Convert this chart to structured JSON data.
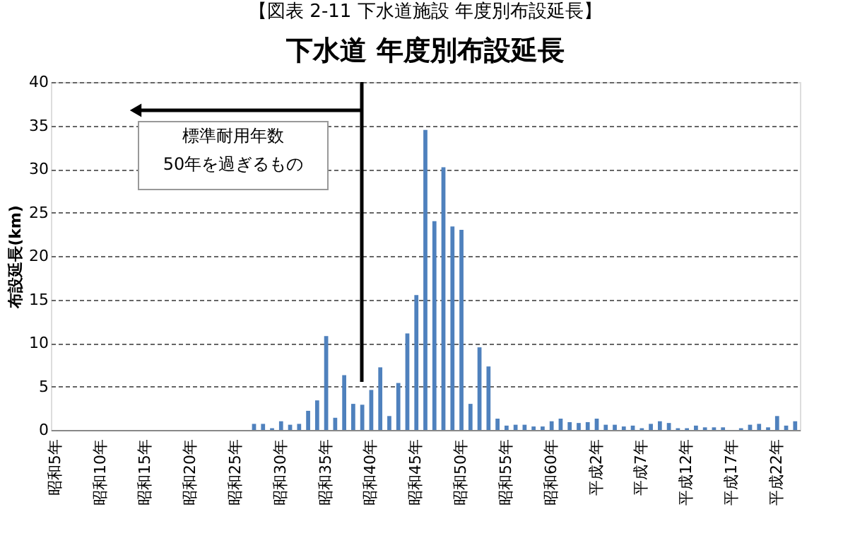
{
  "chart_data": {
    "type": "bar",
    "title": "【図表 2-11 下水道施設 年度別布設延長】",
    "subtitle": "下水道 年度別布設延長",
    "ylabel": "布設延長(km)",
    "categories": [
      "昭和5年",
      null,
      null,
      null,
      null,
      "昭和10年",
      null,
      null,
      null,
      null,
      "昭和15年",
      null,
      null,
      null,
      null,
      "昭和20年",
      null,
      null,
      null,
      null,
      "昭和25年",
      null,
      null,
      null,
      null,
      "昭和30年",
      null,
      null,
      null,
      null,
      "昭和35年",
      null,
      null,
      null,
      null,
      "昭和40年",
      null,
      null,
      null,
      null,
      "昭和45年",
      null,
      null,
      null,
      null,
      "昭和50年",
      null,
      null,
      null,
      null,
      "昭和55年",
      null,
      null,
      null,
      null,
      "昭和60年",
      null,
      null,
      null,
      null,
      "平成2年",
      null,
      null,
      null,
      null,
      "平成7年",
      null,
      null,
      null,
      null,
      "平成12年",
      null,
      null,
      null,
      null,
      "平成17年",
      null,
      null,
      null,
      null,
      "平成22年",
      null,
      null
    ],
    "values": [
      0,
      0,
      0,
      0,
      0,
      0,
      0,
      0,
      0,
      0,
      0,
      0,
      0,
      0,
      0,
      0,
      0,
      0,
      0,
      0,
      0,
      0,
      0.7,
      0.7,
      0.2,
      1.0,
      0.6,
      0.7,
      2.2,
      3.4,
      10.8,
      1.4,
      6.3,
      3.0,
      2.9,
      4.6,
      7.2,
      1.6,
      5.4,
      11.1,
      15.5,
      34.5,
      24.0,
      30.2,
      23.4,
      23.0,
      3.0,
      9.5,
      7.3,
      1.3,
      0.5,
      0.6,
      0.6,
      0.4,
      0.4,
      1.0,
      1.3,
      0.9,
      0.8,
      0.9,
      1.3,
      0.6,
      0.6,
      0.4,
      0.5,
      0.2,
      0.7,
      1.0,
      0.8,
      0.2,
      0.2,
      0.5,
      0.3,
      0.3,
      0.3,
      0,
      0.2,
      0.6,
      0.7,
      0.3,
      1.6,
      0.5,
      1.0
    ],
    "color": "#4f81bd",
    "ylim": [
      0,
      40
    ],
    "yticks": [
      0,
      5,
      10,
      15,
      20,
      25,
      30,
      35,
      40
    ],
    "grid": "y",
    "annotations": [
      "標準耐用年数\n50年を過ぎるもの"
    ]
  }
}
